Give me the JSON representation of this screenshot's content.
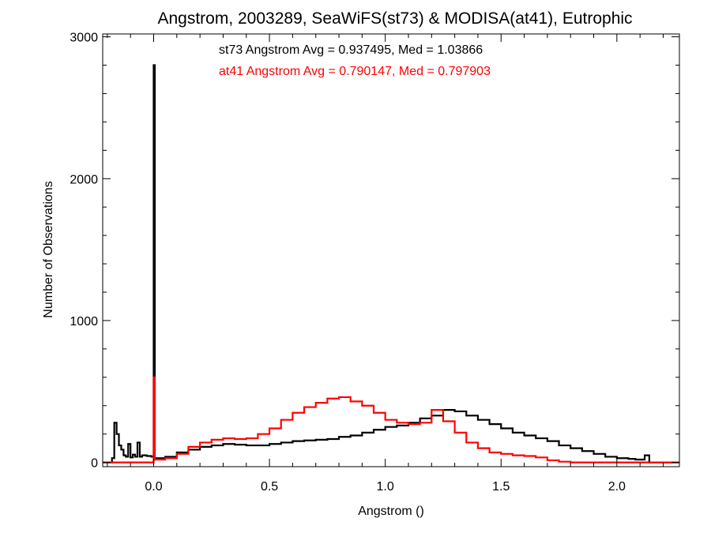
{
  "chart_data": {
    "type": "histogram-step",
    "title": "Angstrom, 2003289, SeaWiFS(st73) & MODISA(at41), Eutrophic",
    "xlabel": "Angstrom ()",
    "ylabel": "Number of Observations",
    "xlim": [
      -0.22,
      2.27
    ],
    "ylim": [
      -30,
      3020
    ],
    "x_ticks": [
      0.0,
      0.5,
      1.0,
      1.5,
      2.0
    ],
    "x_tick_labels": [
      "0.0",
      "0.5",
      "1.0",
      "1.5",
      "2.0"
    ],
    "y_ticks": [
      0,
      1000,
      2000,
      3000
    ],
    "y_tick_labels": [
      "0",
      "1000",
      "2000",
      "3000"
    ],
    "annotations": [
      {
        "text": "st73 Angstrom Avg = 0.937495, Med = 1.03866",
        "color": "#000000"
      },
      {
        "text": "at41 Angstrom Avg = 0.790147, Med = 0.797903",
        "color": "#ff0000"
      }
    ],
    "series": [
      {
        "color": "#000000",
        "points": [
          [
            -0.22,
            0
          ],
          [
            -0.18,
            30
          ],
          [
            -0.17,
            280
          ],
          [
            -0.16,
            200
          ],
          [
            -0.15,
            120
          ],
          [
            -0.14,
            90
          ],
          [
            -0.13,
            50
          ],
          [
            -0.12,
            40
          ],
          [
            -0.11,
            130
          ],
          [
            -0.1,
            35
          ],
          [
            -0.09,
            55
          ],
          [
            -0.08,
            40
          ],
          [
            -0.07,
            140
          ],
          [
            -0.06,
            40
          ],
          [
            -0.05,
            50
          ],
          [
            -0.03,
            45
          ],
          [
            -0.01,
            40
          ],
          [
            0.0,
            2800
          ],
          [
            0.005,
            30
          ],
          [
            0.05,
            40
          ],
          [
            0.1,
            70
          ],
          [
            0.15,
            90
          ],
          [
            0.2,
            110
          ],
          [
            0.25,
            120
          ],
          [
            0.3,
            130
          ],
          [
            0.35,
            125
          ],
          [
            0.4,
            120
          ],
          [
            0.45,
            120
          ],
          [
            0.5,
            130
          ],
          [
            0.55,
            140
          ],
          [
            0.6,
            150
          ],
          [
            0.65,
            155
          ],
          [
            0.7,
            160
          ],
          [
            0.75,
            165
          ],
          [
            0.8,
            180
          ],
          [
            0.85,
            190
          ],
          [
            0.9,
            210
          ],
          [
            0.95,
            230
          ],
          [
            1.0,
            250
          ],
          [
            1.05,
            260
          ],
          [
            1.1,
            280
          ],
          [
            1.15,
            310
          ],
          [
            1.2,
            330
          ],
          [
            1.25,
            370
          ],
          [
            1.3,
            360
          ],
          [
            1.35,
            330
          ],
          [
            1.4,
            300
          ],
          [
            1.45,
            270
          ],
          [
            1.5,
            240
          ],
          [
            1.55,
            210
          ],
          [
            1.6,
            190
          ],
          [
            1.65,
            170
          ],
          [
            1.7,
            150
          ],
          [
            1.75,
            120
          ],
          [
            1.8,
            100
          ],
          [
            1.85,
            80
          ],
          [
            1.9,
            60
          ],
          [
            1.95,
            40
          ],
          [
            2.0,
            30
          ],
          [
            2.05,
            25
          ],
          [
            2.08,
            20
          ],
          [
            2.12,
            50
          ],
          [
            2.14,
            0
          ],
          [
            2.27,
            0
          ]
        ]
      },
      {
        "color": "#ff0000",
        "points": [
          [
            -0.22,
            0
          ],
          [
            -0.15,
            0
          ],
          [
            -0.1,
            0
          ],
          [
            -0.05,
            0
          ],
          [
            -0.01,
            0
          ],
          [
            0.0,
            600
          ],
          [
            0.005,
            20
          ],
          [
            0.05,
            30
          ],
          [
            0.1,
            60
          ],
          [
            0.15,
            110
          ],
          [
            0.2,
            140
          ],
          [
            0.25,
            160
          ],
          [
            0.3,
            170
          ],
          [
            0.35,
            165
          ],
          [
            0.4,
            170
          ],
          [
            0.45,
            200
          ],
          [
            0.5,
            240
          ],
          [
            0.55,
            300
          ],
          [
            0.6,
            350
          ],
          [
            0.65,
            390
          ],
          [
            0.7,
            420
          ],
          [
            0.75,
            450
          ],
          [
            0.8,
            460
          ],
          [
            0.85,
            430
          ],
          [
            0.9,
            400
          ],
          [
            0.95,
            350
          ],
          [
            1.0,
            300
          ],
          [
            1.05,
            280
          ],
          [
            1.1,
            270
          ],
          [
            1.15,
            280
          ],
          [
            1.2,
            370
          ],
          [
            1.25,
            290
          ],
          [
            1.3,
            210
          ],
          [
            1.35,
            140
          ],
          [
            1.4,
            100
          ],
          [
            1.45,
            70
          ],
          [
            1.5,
            60
          ],
          [
            1.55,
            50
          ],
          [
            1.6,
            45
          ],
          [
            1.65,
            35
          ],
          [
            1.7,
            15
          ],
          [
            1.75,
            5
          ],
          [
            1.8,
            0
          ],
          [
            2.27,
            0
          ]
        ]
      }
    ]
  }
}
